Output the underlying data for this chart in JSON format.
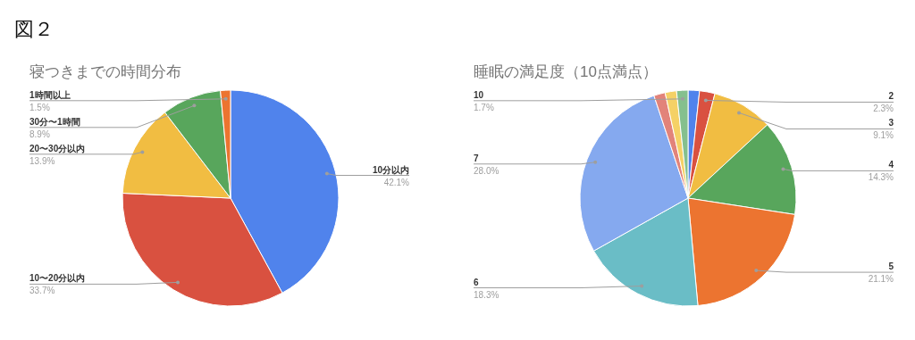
{
  "chart_data": [
    {
      "type": "pie",
      "title": "寝つきまでの時間分布",
      "annotations": [
        "図２"
      ],
      "categories": [
        "10分以内",
        "10〜20分以内",
        "20〜30分以内",
        "30分〜1時間",
        "1時間以上"
      ],
      "values": [
        42.1,
        33.7,
        13.9,
        8.9,
        1.5
      ],
      "value_labels": [
        "42.1%",
        "33.7%",
        "13.9%",
        "8.9%",
        "1.5%"
      ],
      "colors": [
        "#5083ec",
        "#d95140",
        "#f1bd42",
        "#58a65c",
        "#ec7430"
      ]
    },
    {
      "type": "pie",
      "title": "睡眠の満足度（10点満点）",
      "categories": [
        null,
        "2",
        "3",
        "4",
        "5",
        "6",
        "7",
        null,
        null,
        "10"
      ],
      "values": [
        1.7,
        2.3,
        9.1,
        14.3,
        21.1,
        18.3,
        28.0,
        1.7,
        1.7,
        1.7
      ],
      "value_labels": [
        null,
        "2.3%",
        "9.1%",
        "14.3%",
        "21.1%",
        "18.3%",
        "28.0%",
        null,
        null,
        "1.7%"
      ],
      "colors": [
        "#5083ec",
        "#d95140",
        "#f1bd42",
        "#58a65c",
        "#ec7430",
        "#6abdc6",
        "#85a9ef",
        "#e2837a",
        "#f5d166",
        "#85c08e"
      ]
    }
  ]
}
